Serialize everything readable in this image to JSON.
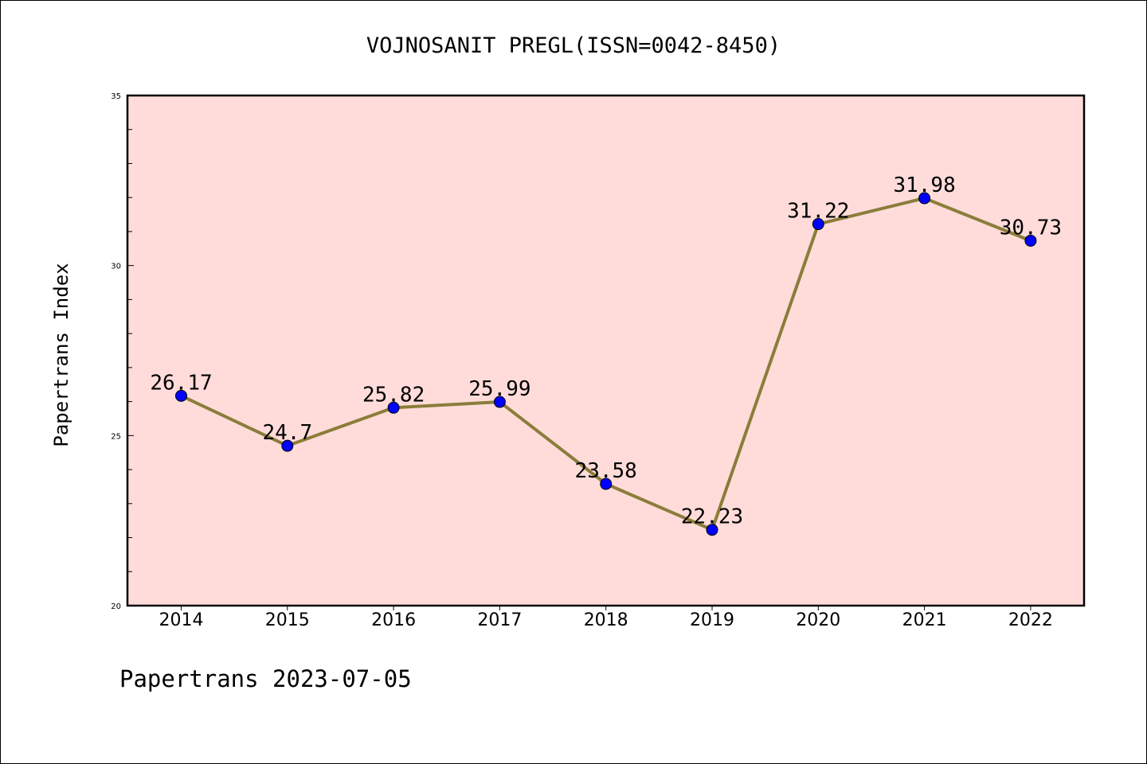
{
  "chart_data": {
    "type": "line",
    "title": "VOJNOSANIT PREGL(ISSN=0042-8450)",
    "ylabel": "Papertrans Index",
    "xlabel": "",
    "x": [
      "2014",
      "2015",
      "2016",
      "2017",
      "2018",
      "2019",
      "2020",
      "2021",
      "2022"
    ],
    "series": [
      {
        "values": [
          26.17,
          24.7,
          25.82,
          25.99,
          23.58,
          22.23,
          31.22,
          31.98,
          30.73
        ],
        "labels": [
          "26.17",
          "24.7",
          "25.82",
          "25.99",
          "23.58",
          "22.23",
          "31.22",
          "31.98",
          "30.73"
        ]
      }
    ],
    "ylim": [
      20,
      35
    ],
    "yticks": [
      "20",
      "25",
      "30",
      "35"
    ],
    "grid": false,
    "colors": {
      "line": "#8B7D3A",
      "marker": "#0000FF",
      "plot_bg": "#FFDCDA"
    }
  },
  "footer": {
    "text": "Papertrans 2023-07-05"
  }
}
